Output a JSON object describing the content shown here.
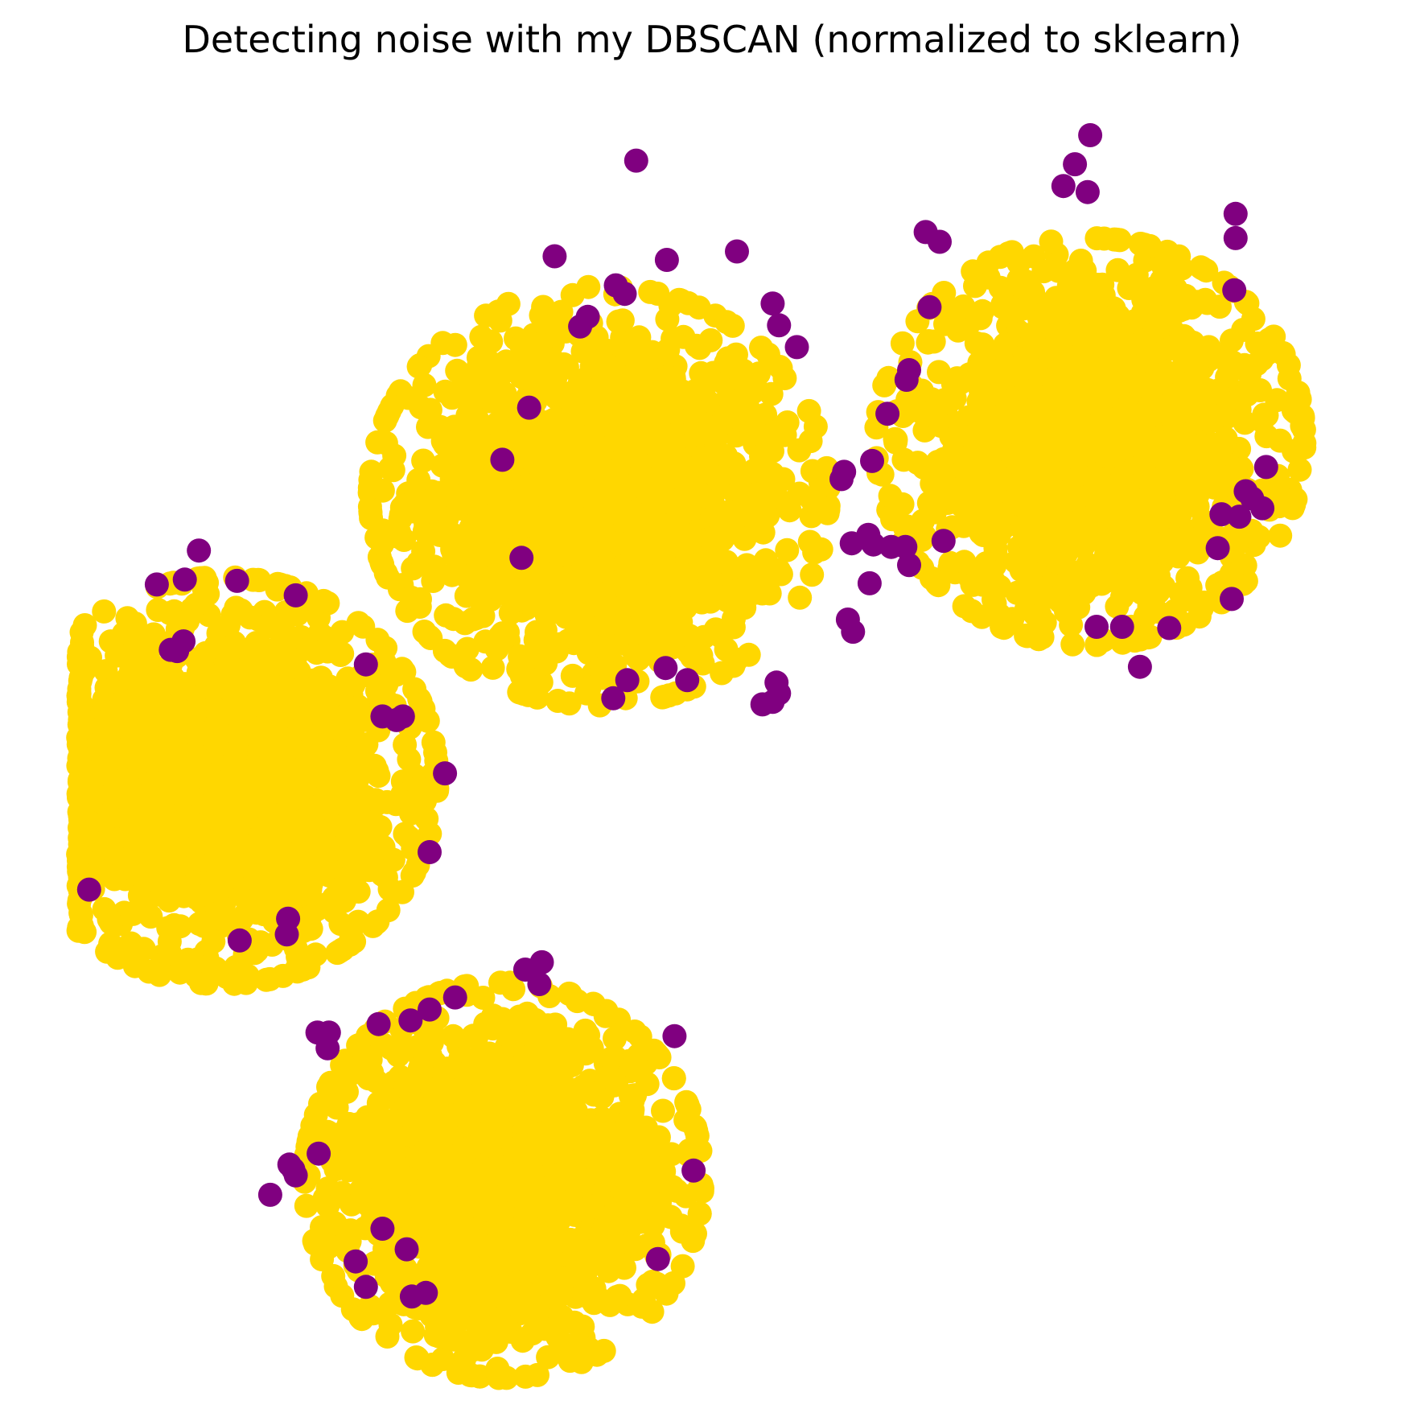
{
  "chart_data": {
    "type": "scatter",
    "title": "Detecting noise with my DBSCAN (normalized to sklearn)",
    "xlabel": "",
    "ylabel": "",
    "axes_visible": false,
    "grid": false,
    "legend": "none",
    "xlim": [
      0,
      1
    ],
    "ylim": [
      0,
      1
    ],
    "series": [
      {
        "role": "core",
        "color": "#FFD700",
        "clusters": [
          {
            "center": [
              0.41,
              0.7
            ],
            "spread": [
              0.075,
              0.072
            ],
            "points": 1500
          },
          {
            "center": [
              0.795,
              0.745
            ],
            "spread": [
              0.07,
              0.07
            ],
            "points": 1500
          },
          {
            "center": [
              0.115,
              0.465
            ],
            "spread": [
              0.07,
              0.07
            ],
            "points": 1500
          },
          {
            "center": [
              0.335,
              0.135
            ],
            "spread": [
              0.065,
              0.068
            ],
            "points": 1500
          }
        ]
      },
      {
        "role": "noise",
        "color": "#800080",
        "points": [
          [
            0.439,
            0.977
          ],
          [
            0.463,
            0.895
          ],
          [
            0.518,
            0.902
          ],
          [
            0.375,
            0.898
          ],
          [
            0.423,
            0.874
          ],
          [
            0.43,
            0.867
          ],
          [
            0.546,
            0.859
          ],
          [
            0.401,
            0.848
          ],
          [
            0.551,
            0.841
          ],
          [
            0.395,
            0.84
          ],
          [
            0.565,
            0.823
          ],
          [
            0.355,
            0.773
          ],
          [
            0.334,
            0.73
          ],
          [
            0.602,
            0.72
          ],
          [
            0.6,
            0.714
          ],
          [
            0.624,
            0.729
          ],
          [
            0.653,
            0.804
          ],
          [
            0.651,
            0.796
          ],
          [
            0.669,
            0.856
          ],
          [
            0.666,
            0.918
          ],
          [
            0.636,
            0.768
          ],
          [
            0.608,
            0.661
          ],
          [
            0.621,
            0.668
          ],
          [
            0.625,
            0.66
          ],
          [
            0.639,
            0.658
          ],
          [
            0.65,
            0.658
          ],
          [
            0.653,
            0.643
          ],
          [
            0.68,
            0.663
          ],
          [
            0.622,
            0.628
          ],
          [
            0.605,
            0.598
          ],
          [
            0.609,
            0.588
          ],
          [
            0.349,
            0.649
          ],
          [
            0.549,
            0.546
          ],
          [
            0.551,
            0.537
          ],
          [
            0.538,
            0.528
          ],
          [
            0.546,
            0.53
          ],
          [
            0.462,
            0.558
          ],
          [
            0.479,
            0.548
          ],
          [
            0.421,
            0.533
          ],
          [
            0.432,
            0.548
          ],
          [
            0.795,
            0.998
          ],
          [
            0.783,
            0.974
          ],
          [
            0.774,
            0.956
          ],
          [
            0.793,
            0.951
          ],
          [
            0.677,
            0.91
          ],
          [
            0.909,
            0.933
          ],
          [
            0.909,
            0.913
          ],
          [
            0.908,
            0.87
          ],
          [
            0.933,
            0.724
          ],
          [
            0.917,
            0.704
          ],
          [
            0.922,
            0.698
          ],
          [
            0.93,
            0.69
          ],
          [
            0.898,
            0.685
          ],
          [
            0.912,
            0.683
          ],
          [
            0.895,
            0.657
          ],
          [
            0.906,
            0.615
          ],
          [
            0.8,
            0.592
          ],
          [
            0.82,
            0.592
          ],
          [
            0.857,
            0.591
          ],
          [
            0.834,
            0.559
          ],
          [
            0.096,
            0.655
          ],
          [
            0.063,
            0.627
          ],
          [
            0.085,
            0.631
          ],
          [
            0.126,
            0.63
          ],
          [
            0.172,
            0.618
          ],
          [
            0.079,
            0.572
          ],
          [
            0.084,
            0.58
          ],
          [
            0.074,
            0.573
          ],
          [
            0.227,
            0.561
          ],
          [
            0.251,
            0.515
          ],
          [
            0.256,
            0.518
          ],
          [
            0.24,
            0.518
          ],
          [
            0.289,
            0.471
          ],
          [
            0.277,
            0.406
          ],
          [
            0.01,
            0.375
          ],
          [
            0.166,
            0.351
          ],
          [
            0.165,
            0.338
          ],
          [
            0.128,
            0.333
          ],
          [
            0.352,
            0.309
          ],
          [
            0.363,
            0.297
          ],
          [
            0.365,
            0.315
          ],
          [
            0.297,
            0.286
          ],
          [
            0.277,
            0.276
          ],
          [
            0.189,
            0.257
          ],
          [
            0.237,
            0.264
          ],
          [
            0.262,
            0.267
          ],
          [
            0.198,
            0.257
          ],
          [
            0.197,
            0.244
          ],
          [
            0.469,
            0.254
          ],
          [
            0.19,
            0.157
          ],
          [
            0.17,
            0.144
          ],
          [
            0.167,
            0.148
          ],
          [
            0.172,
            0.139
          ],
          [
            0.152,
            0.123
          ],
          [
            0.484,
            0.143
          ],
          [
            0.24,
            0.095
          ],
          [
            0.219,
            0.068
          ],
          [
            0.259,
            0.078
          ],
          [
            0.456,
            0.07
          ],
          [
            0.227,
            0.047
          ],
          [
            0.274,
            0.042
          ],
          [
            0.263,
            0.039
          ]
        ]
      }
    ]
  }
}
